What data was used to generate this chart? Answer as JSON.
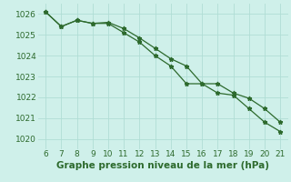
{
  "x": [
    6,
    7,
    8,
    9,
    10,
    11,
    12,
    13,
    14,
    15,
    16,
    17,
    18,
    19,
    20,
    21
  ],
  "line1": [
    1026.1,
    1025.4,
    1025.7,
    1025.55,
    1025.55,
    1025.1,
    1024.65,
    1024.0,
    1023.5,
    1022.65,
    1022.65,
    1022.2,
    1022.1,
    1021.45,
    1020.8,
    1020.35
  ],
  "line2": [
    1026.1,
    1025.4,
    1025.7,
    1025.55,
    1025.6,
    1025.3,
    1024.85,
    1024.35,
    1023.85,
    1023.5,
    1022.65,
    1022.65,
    1022.2,
    1021.95,
    1021.45,
    1020.8
  ],
  "line_color": "#2d6a2d",
  "bg_color": "#cff0ea",
  "grid_color": "#b0ddd5",
  "xlabel": "Graphe pression niveau de la mer (hPa)",
  "xlim": [
    5.5,
    21.5
  ],
  "ylim": [
    1019.5,
    1026.5
  ],
  "yticks": [
    1020,
    1021,
    1022,
    1023,
    1024,
    1025,
    1026
  ],
  "xticks": [
    6,
    7,
    8,
    9,
    10,
    11,
    12,
    13,
    14,
    15,
    16,
    17,
    18,
    19,
    20,
    21
  ],
  "xlabel_fontsize": 7.5,
  "tick_fontsize": 6.5
}
